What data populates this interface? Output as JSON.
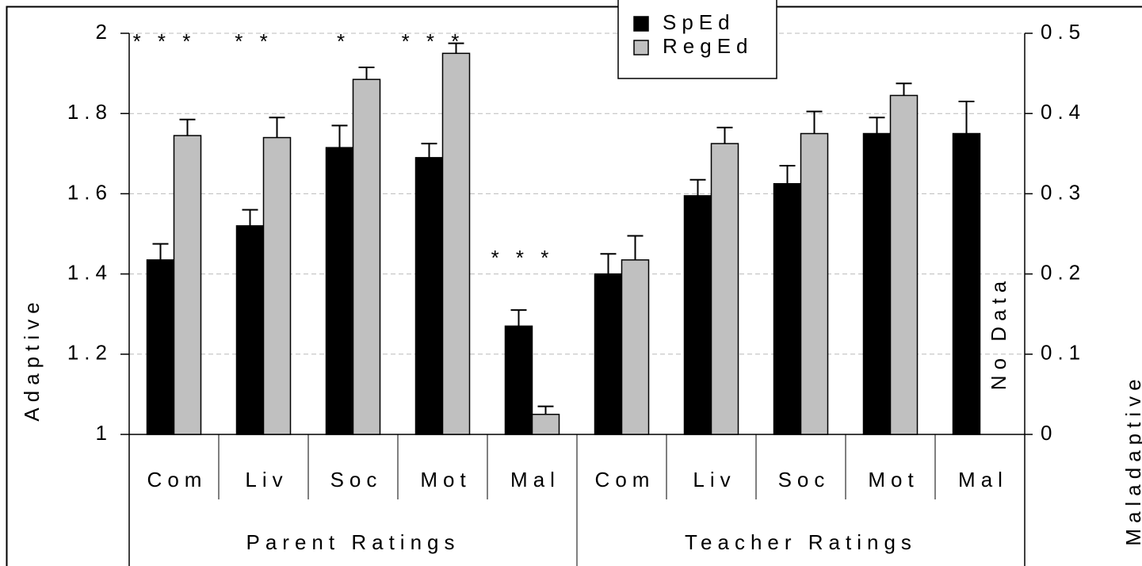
{
  "chart_data": {
    "type": "bar",
    "categories": [
      "Com",
      "Liv",
      "Soc",
      "Mot",
      "Mal",
      "Com",
      "Liv",
      "Soc",
      "Mot",
      "Mal"
    ],
    "groups": [
      "Parent Ratings",
      "Teacher Ratings"
    ],
    "series": [
      {
        "name": "SpEd",
        "color": "#000000",
        "values": [
          1.435,
          1.52,
          1.715,
          1.69,
          null,
          1.4,
          1.595,
          1.625,
          1.75,
          null
        ],
        "errors": [
          0.04,
          0.04,
          0.055,
          0.035,
          null,
          0.05,
          0.04,
          0.045,
          0.04,
          null
        ]
      },
      {
        "name": "RegEd",
        "color": "#c0c0c0",
        "values": [
          1.745,
          1.74,
          1.885,
          1.95,
          null,
          1.435,
          1.725,
          1.75,
          1.845,
          null
        ],
        "errors": [
          0.04,
          0.05,
          0.03,
          0.025,
          null,
          0.06,
          0.04,
          0.055,
          0.03,
          null
        ]
      },
      {
        "name": "SpEd",
        "color": "#000000",
        "axis": "y2",
        "values": [
          null,
          null,
          null,
          null,
          0.135,
          null,
          null,
          null,
          null,
          0.375
        ],
        "errors": [
          null,
          null,
          null,
          null,
          0.02,
          null,
          null,
          null,
          null,
          0.04
        ]
      },
      {
        "name": "RegEd",
        "color": "#c0c0c0",
        "axis": "y2",
        "values": [
          null,
          null,
          null,
          null,
          0.025,
          null,
          null,
          null,
          null,
          null
        ],
        "errors": [
          null,
          null,
          null,
          null,
          0.01,
          null,
          null,
          null,
          null,
          null
        ]
      }
    ],
    "annotations": [
      "* * *",
      "* *",
      "*",
      "* * *",
      "* * *",
      null,
      null,
      null,
      null,
      null
    ],
    "no_data_label": "No Data",
    "y_label": "Adaptive",
    "y2_label": "Maladaptive",
    "ylim": [
      1,
      2
    ],
    "yticks": [
      1,
      1.2,
      1.4,
      1.6,
      1.8,
      2
    ],
    "y2lim": [
      0,
      0.5
    ],
    "y2ticks": [
      0,
      0.1,
      0.2,
      0.3,
      0.4,
      0.5
    ],
    "grid": true
  }
}
